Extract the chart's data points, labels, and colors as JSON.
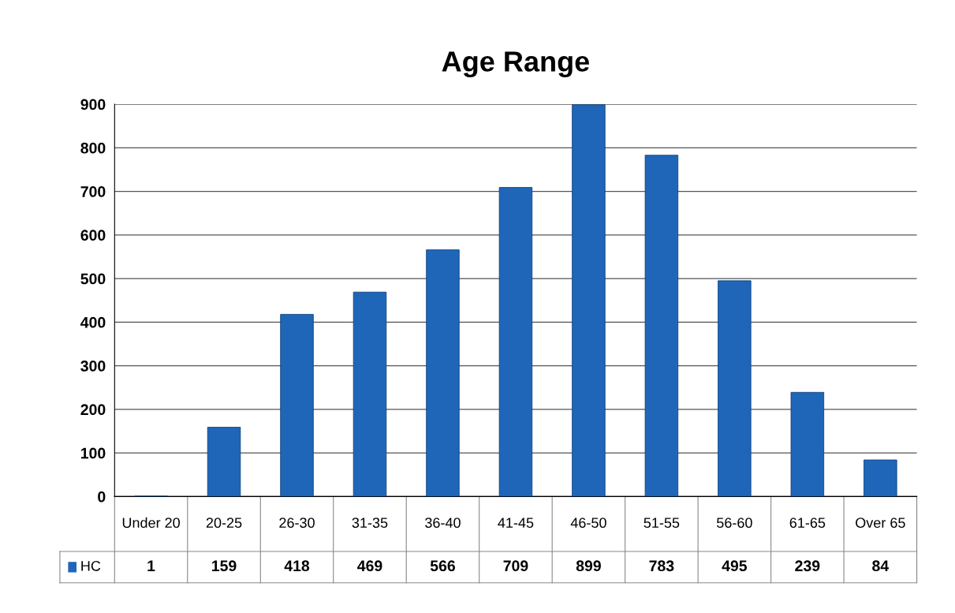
{
  "chart_data": {
    "type": "bar",
    "title": "Age Range",
    "categories": [
      "Under 20",
      "20-25",
      "26-30",
      "31-35",
      "36-40",
      "41-45",
      "46-50",
      "51-55",
      "56-60",
      "61-65",
      "Over 65"
    ],
    "series": [
      {
        "name": "HC",
        "color": "#1f66b8",
        "values": [
          1,
          159,
          418,
          469,
          566,
          709,
          899,
          783,
          495,
          239,
          84
        ]
      }
    ],
    "ylim": [
      0,
      900
    ],
    "yticks": [
      0,
      100,
      200,
      300,
      400,
      500,
      600,
      700,
      800,
      900
    ],
    "grid": "y",
    "legend": "bottom left",
    "data_labels": true
  }
}
